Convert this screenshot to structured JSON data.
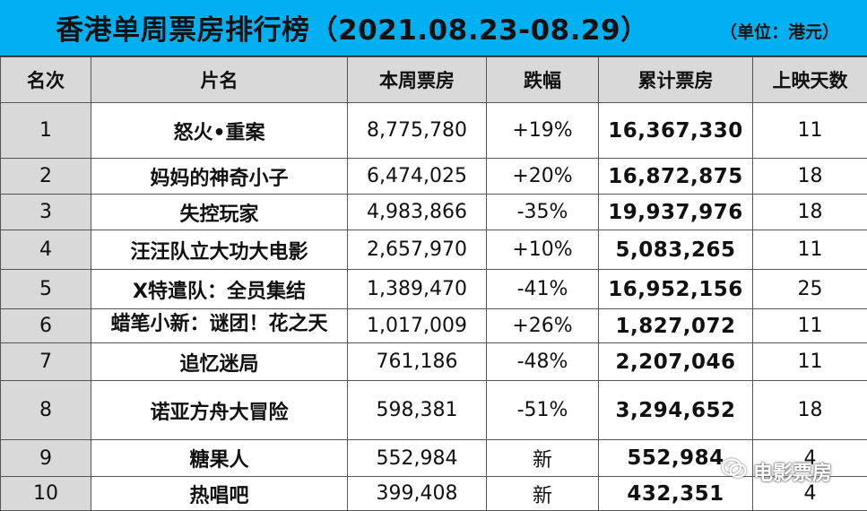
{
  "title": "香港单周票房排行榜（2021.08.23-08.29）",
  "unit": "（单位：港元）",
  "headers": [
    "名次",
    "片名",
    "本周票房",
    "跌幅",
    "累计票房",
    "上映天数"
  ],
  "rows": [
    {
      "rank": "1",
      "title": "怒火•重案",
      "weekly": "8,775,780",
      "change": "+19%",
      "cumulative": "16,367,330",
      "days": "11"
    },
    {
      "rank": "2",
      "title": "妈妈的神奇小子",
      "weekly": "6,474,025",
      "change": "+20%",
      "cumulative": "16,872,875",
      "days": "18"
    },
    {
      "rank": "3",
      "title": "失控玩家",
      "weekly": "4,983,866",
      "change": "-35%",
      "cumulative": "19,937,976",
      "days": "18"
    },
    {
      "rank": "4",
      "title": "汪汪队立大功大电影",
      "weekly": "2,657,970",
      "change": "+10%",
      "cumulative": "5,083,265",
      "days": "11"
    },
    {
      "rank": "5",
      "title": "X特遣队：全员集结",
      "weekly": "1,389,470",
      "change": "-41%",
      "cumulative": "16,952,156",
      "days": "25"
    },
    {
      "rank": "6",
      "title": "蜡笔小新：谜团！花之天",
      "weekly": "1,017,009",
      "change": "+26%",
      "cumulative": "1,827,072",
      "days": "11"
    },
    {
      "rank": "7",
      "title": "追忆迷局",
      "weekly": "761,186",
      "change": "-48%",
      "cumulative": "2,207,046",
      "days": "11"
    },
    {
      "rank": "8",
      "title": "诺亚方舟大冒险",
      "weekly": "598,381",
      "change": "-51%",
      "cumulative": "3,294,652",
      "days": "18"
    },
    {
      "rank": "9",
      "title": "糖果人",
      "weekly": "552,984",
      "change": "新",
      "cumulative": "552,984",
      "days": "4"
    },
    {
      "rank": "10",
      "title": "热唱吧",
      "weekly": "399,408",
      "change": "新",
      "cumulative": "432,351",
      "days": "4"
    }
  ],
  "watermark": {
    "icon": "wechat-icon",
    "text": "电影票房"
  }
}
